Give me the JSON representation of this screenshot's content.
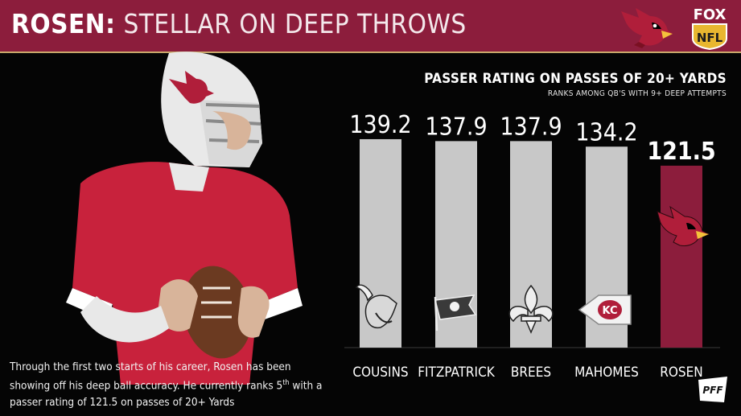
{
  "header": {
    "title_bold": "ROSEN:",
    "title_light": "STELLAR ON DEEP THROWS",
    "team_logo_icon": "cardinal-head-icon",
    "network_badge": {
      "line1": "FOX",
      "line2": "NFL"
    }
  },
  "caption": {
    "part1": "Through the first two starts of his career, Rosen has been showing off his deep ball accuracy. He currently ranks 5",
    "superscript": "th",
    "part2": " with a passer rating of 121.5 on passes of 20+ Yards"
  },
  "footer": {
    "brand": "PFF"
  },
  "chart_data": {
    "type": "bar",
    "title": "PASSER RATING ON PASSES OF 20+ YARDS",
    "subtitle": "RANKS AMONG QB'S WITH 9+ DEEP ATTEMPTS",
    "categories": [
      "COUSINS",
      "FITZPATRICK",
      "BREES",
      "MAHOMES",
      "ROSEN"
    ],
    "values": [
      139.2,
      137.9,
      137.9,
      134.2,
      121.5
    ],
    "value_labels": [
      "139.2",
      "137.9",
      "137.9",
      "134.2",
      "121.5"
    ],
    "team_icons": [
      "vikings-helmet-icon",
      "buccaneers-flag-icon",
      "saints-fleur-de-lis-icon",
      "chiefs-arrowhead-icon",
      "cardinal-head-icon"
    ],
    "colors": {
      "default_bar": "#c8c8c8",
      "highlight_bar": "#8c1d3c"
    },
    "highlight_index": 4,
    "ylim": [
      0,
      150
    ],
    "grid": false,
    "legend": "none",
    "xlabel": "",
    "ylabel": ""
  }
}
